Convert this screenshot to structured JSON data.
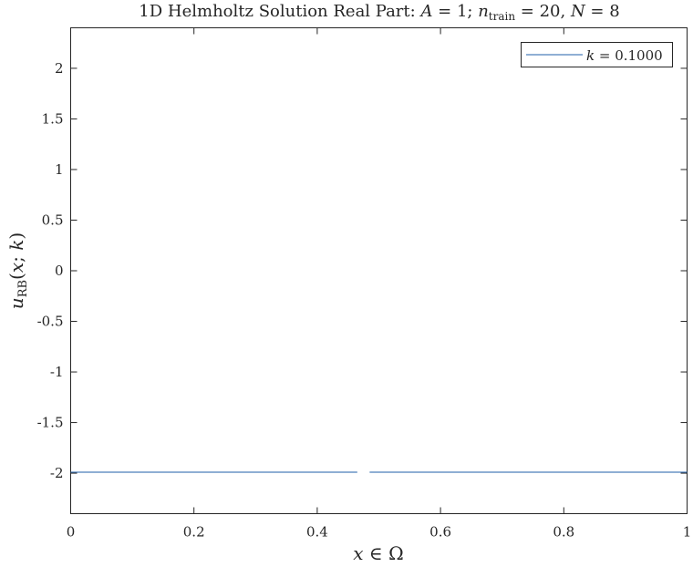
{
  "chart_data": {
    "type": "line",
    "title": "1D Helmholtz Solution Real Part: A = 1; n_train = 20, N = 8",
    "title_parts": {
      "lead": "1D Helmholtz Solution Real Part: ",
      "a_sym": "A",
      "a_eq": " = 1; ",
      "n_sym": "n",
      "n_sub": "train",
      "n_eq": " = 20, ",
      "N_sym": "N",
      "N_eq": " = 8"
    },
    "xlabel": "x ∈ Ω",
    "xlabel_parts": {
      "sym": "x",
      "rest": " ∈ Ω"
    },
    "ylabel": "u_RB(x; k)",
    "ylabel_parts": {
      "sym": "u",
      "sub": "RB",
      "open": "(",
      "x": "x",
      "sep": "; ",
      "k": "k",
      "close": ")"
    },
    "xlim": [
      0,
      1
    ],
    "ylim": [
      -2.4,
      2.4
    ],
    "xticks": [
      0,
      0.2,
      0.4,
      0.6,
      0.8,
      1
    ],
    "xtick_labels": [
      "0",
      "0.2",
      "0.4",
      "0.6",
      "0.8",
      "1"
    ],
    "yticks": [
      -2,
      -1.5,
      -1,
      -0.5,
      0,
      0.5,
      1,
      1.5,
      2
    ],
    "ytick_labels": [
      "-2",
      "-1.5",
      "-1",
      "-0.5",
      "0",
      "0.5",
      "1",
      "1.5",
      "2"
    ],
    "grid": false,
    "legend_position": "top-right",
    "series": [
      {
        "name": "k = 0.1000",
        "name_parts": {
          "sym": "k",
          "rest": " = 0.1000"
        },
        "color": "#1f5fa8",
        "segments": [
          {
            "x": [
              0,
              0.465
            ],
            "y": [
              -1.99,
              -1.99
            ]
          },
          {
            "x": [
              0.485,
              1
            ],
            "y": [
              -1.99,
              -1.99
            ]
          }
        ]
      }
    ]
  }
}
